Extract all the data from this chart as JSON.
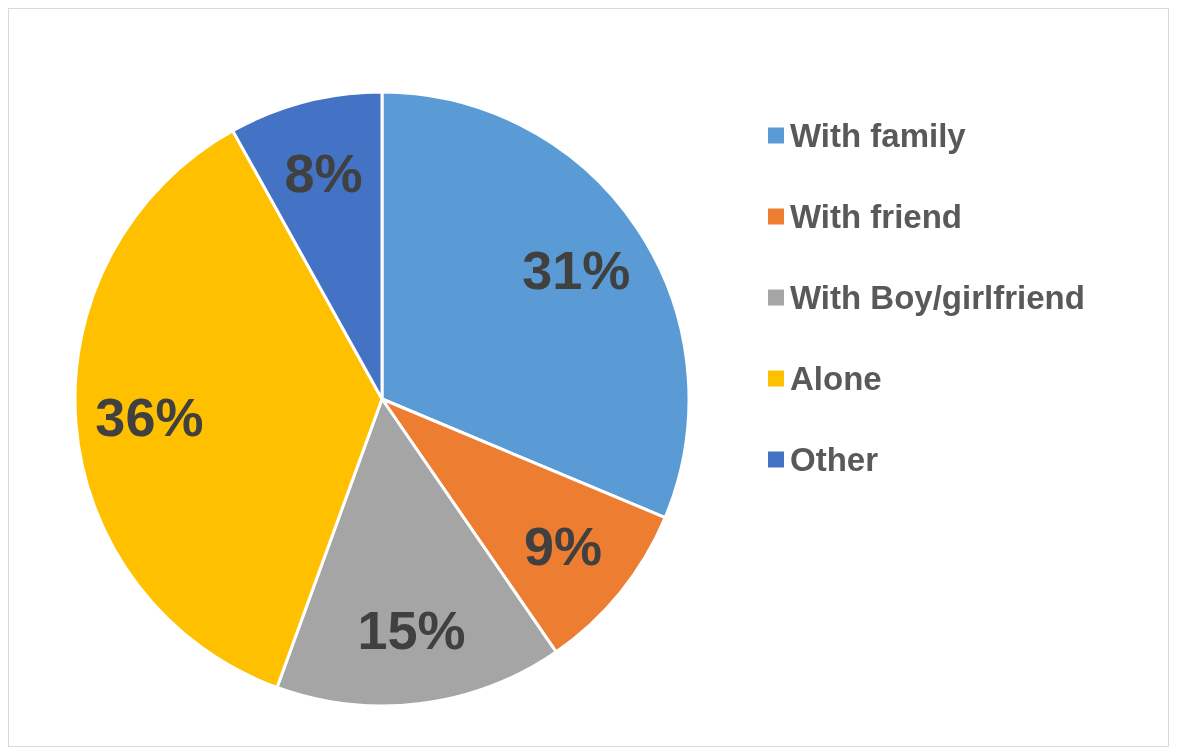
{
  "chart_data": {
    "type": "pie",
    "categories": [
      "With family",
      "With friend",
      "With Boy/girlfriend",
      "Alone",
      "Other"
    ],
    "values": [
      31,
      9,
      15,
      36,
      8
    ],
    "colors": [
      "#5b9bd5",
      "#ed7d31",
      "#a5a5a5",
      "#ffc000",
      "#4472c4"
    ],
    "value_labels": [
      "31%",
      "9%",
      "15%",
      "36%",
      "8%"
    ],
    "legend": "right"
  }
}
